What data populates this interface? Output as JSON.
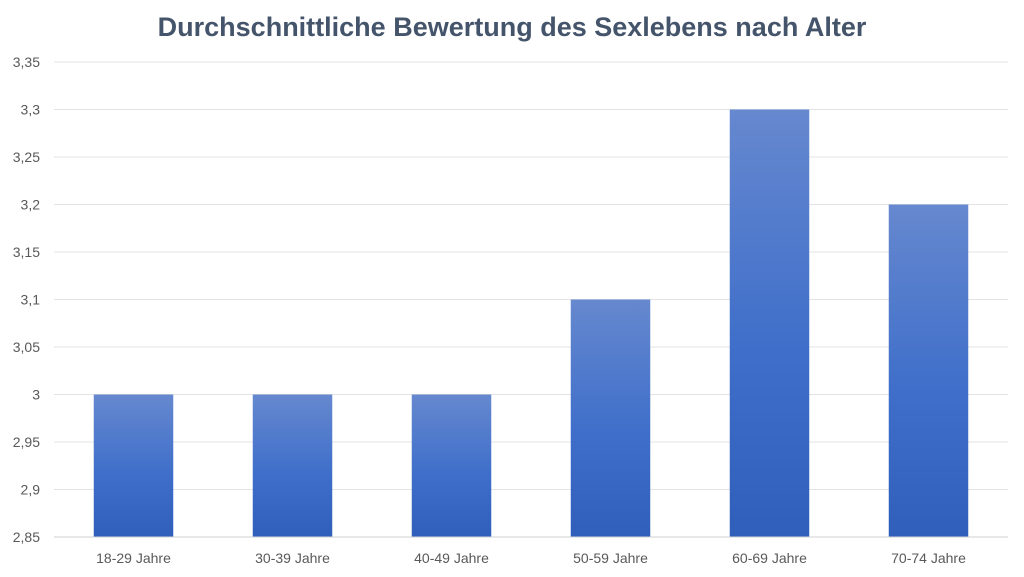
{
  "chart_data": {
    "type": "bar",
    "title": "Durchschnittliche Bewertung des Sexlebens nach Alter",
    "xlabel": "",
    "ylabel": "",
    "categories": [
      "18-29 Jahre",
      "30-39 Jahre",
      "40-49 Jahre",
      "50-59 Jahre",
      "60-69 Jahre",
      "70-74 Jahre"
    ],
    "values": [
      3.0,
      3.0,
      3.0,
      3.1,
      3.3,
      3.2
    ],
    "ylim": [
      2.85,
      3.35
    ],
    "yticks": [
      2.85,
      2.9,
      2.95,
      3,
      3.05,
      3.1,
      3.15,
      3.2,
      3.25,
      3.3,
      3.35
    ],
    "ytick_labels": [
      "2,85",
      "2,9",
      "2,95",
      "3",
      "3,05",
      "3,1",
      "3,15",
      "3,2",
      "3,25",
      "3,3",
      "3,35"
    ],
    "grid": true,
    "legend": "none",
    "colors": {
      "bar_top": "#6688cf",
      "bar_bottom": "#2f5fbb",
      "title": "#44546a",
      "tick": "#595959",
      "grid": "#e3e3e3"
    }
  }
}
